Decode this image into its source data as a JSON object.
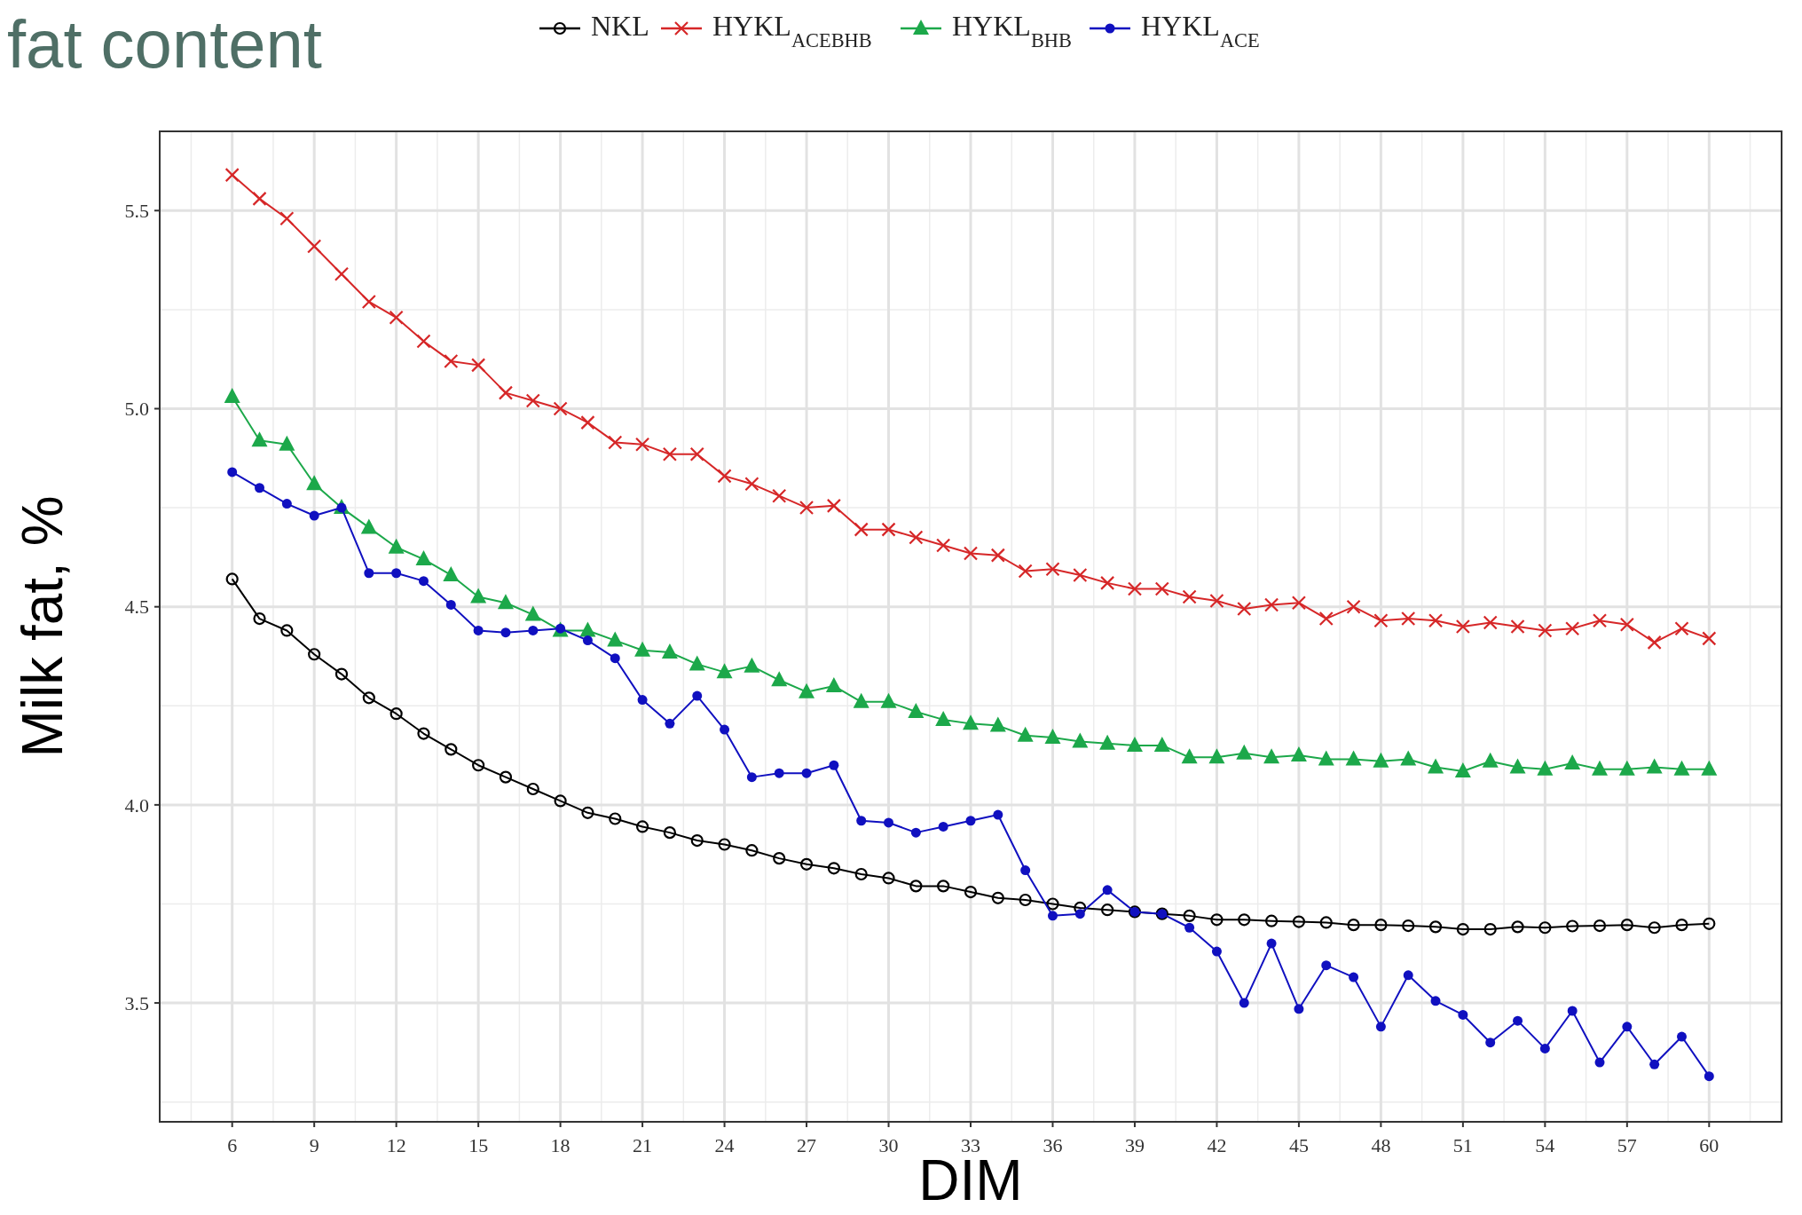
{
  "chart_data": {
    "type": "line",
    "title": "fat content",
    "xlabel": "DIM",
    "ylabel": "Milk fat, %",
    "x": [
      6,
      7,
      8,
      9,
      10,
      11,
      12,
      13,
      14,
      15,
      16,
      17,
      18,
      19,
      20,
      21,
      22,
      23,
      24,
      25,
      26,
      27,
      28,
      29,
      30,
      31,
      32,
      33,
      34,
      35,
      36,
      37,
      38,
      39,
      40,
      41,
      42,
      43,
      44,
      45,
      46,
      47,
      48,
      49,
      50,
      51,
      52,
      53,
      54,
      55,
      56,
      57,
      58,
      59,
      60
    ],
    "xlim": [
      3.35,
      62.65
    ],
    "xticks": [
      6,
      9,
      12,
      15,
      18,
      21,
      24,
      27,
      30,
      33,
      36,
      39,
      42,
      45,
      48,
      51,
      54,
      57,
      60
    ],
    "ylim": [
      3.2,
      5.7
    ],
    "yticks": [
      3.5,
      {
        "value": 4,
        "label": "4.0"
      },
      4.5,
      {
        "value": 5,
        "label": "5.0"
      },
      5.5
    ],
    "grid": true,
    "legend": "top",
    "line_style": "solid",
    "series": [
      {
        "name": "NKL",
        "color": "#000000",
        "marker": "circle",
        "values": [
          4.57,
          4.47,
          4.44,
          4.38,
          4.33,
          4.27,
          4.23,
          4.18,
          4.14,
          4.1,
          4.07,
          4.04,
          4.01,
          3.98,
          3.965,
          3.945,
          3.93,
          3.91,
          3.9,
          3.885,
          3.865,
          3.85,
          3.84,
          3.825,
          3.815,
          3.795,
          3.795,
          3.78,
          3.765,
          3.76,
          3.75,
          3.74,
          3.735,
          3.73,
          3.725,
          3.72,
          3.71,
          3.71,
          3.707,
          3.705,
          3.703,
          3.697,
          3.697,
          3.695,
          3.692,
          3.686,
          3.686,
          3.692,
          3.69,
          3.694,
          3.695,
          3.697,
          3.69,
          3.697,
          3.7
        ]
      },
      {
        "name": "HYKL$_{ACEBHB}$",
        "color": "#d62728",
        "marker": "cross",
        "values": [
          5.59,
          5.53,
          5.48,
          5.41,
          5.34,
          5.27,
          5.23,
          5.17,
          5.12,
          5.11,
          5.04,
          5.02,
          5.0,
          4.965,
          4.915,
          4.91,
          4.885,
          4.885,
          4.83,
          4.81,
          4.78,
          4.75,
          4.755,
          4.695,
          4.695,
          4.675,
          4.655,
          4.635,
          4.63,
          4.59,
          4.595,
          4.58,
          4.56,
          4.545,
          4.545,
          4.525,
          4.515,
          4.495,
          4.505,
          4.51,
          4.47,
          4.5,
          4.465,
          4.47,
          4.465,
          4.45,
          4.46,
          4.45,
          4.44,
          4.445,
          4.465,
          4.455,
          4.41,
          4.445,
          4.42
        ]
      },
      {
        "name": "HYKL$_{BHB}$",
        "color": "#1ca84a",
        "marker": "triangle",
        "values": [
          5.03,
          4.92,
          4.91,
          4.81,
          4.75,
          4.7,
          4.65,
          4.62,
          4.58,
          4.525,
          4.51,
          4.48,
          4.44,
          4.44,
          4.415,
          4.39,
          4.385,
          4.355,
          4.335,
          4.35,
          4.315,
          4.285,
          4.3,
          4.26,
          4.26,
          4.235,
          4.215,
          4.205,
          4.2,
          4.175,
          4.17,
          4.16,
          4.155,
          4.15,
          4.15,
          4.12,
          4.12,
          4.13,
          4.12,
          4.125,
          4.115,
          4.115,
          4.11,
          4.115,
          4.095,
          4.085,
          4.11,
          4.095,
          4.09,
          4.105,
          4.09,
          4.09,
          4.095,
          4.09,
          4.09
        ]
      },
      {
        "name": "HYKL$_{ACE}$",
        "color": "#1010c0",
        "marker": "circle-filled",
        "values": [
          4.84,
          4.8,
          4.76,
          4.73,
          4.75,
          4.585,
          4.585,
          4.565,
          4.505,
          4.44,
          4.435,
          4.44,
          4.445,
          4.415,
          4.37,
          4.265,
          4.205,
          4.275,
          4.19,
          4.07,
          4.08,
          4.08,
          4.1,
          3.96,
          3.955,
          3.93,
          3.945,
          3.96,
          3.975,
          3.835,
          3.72,
          3.725,
          3.785,
          3.73,
          3.725,
          3.69,
          3.63,
          3.5,
          3.65,
          3.485,
          3.595,
          3.565,
          3.44,
          3.57,
          3.505,
          3.47,
          3.4,
          3.455,
          3.385,
          3.48,
          3.35,
          3.44,
          3.345,
          3.415,
          3.315
        ]
      }
    ]
  }
}
